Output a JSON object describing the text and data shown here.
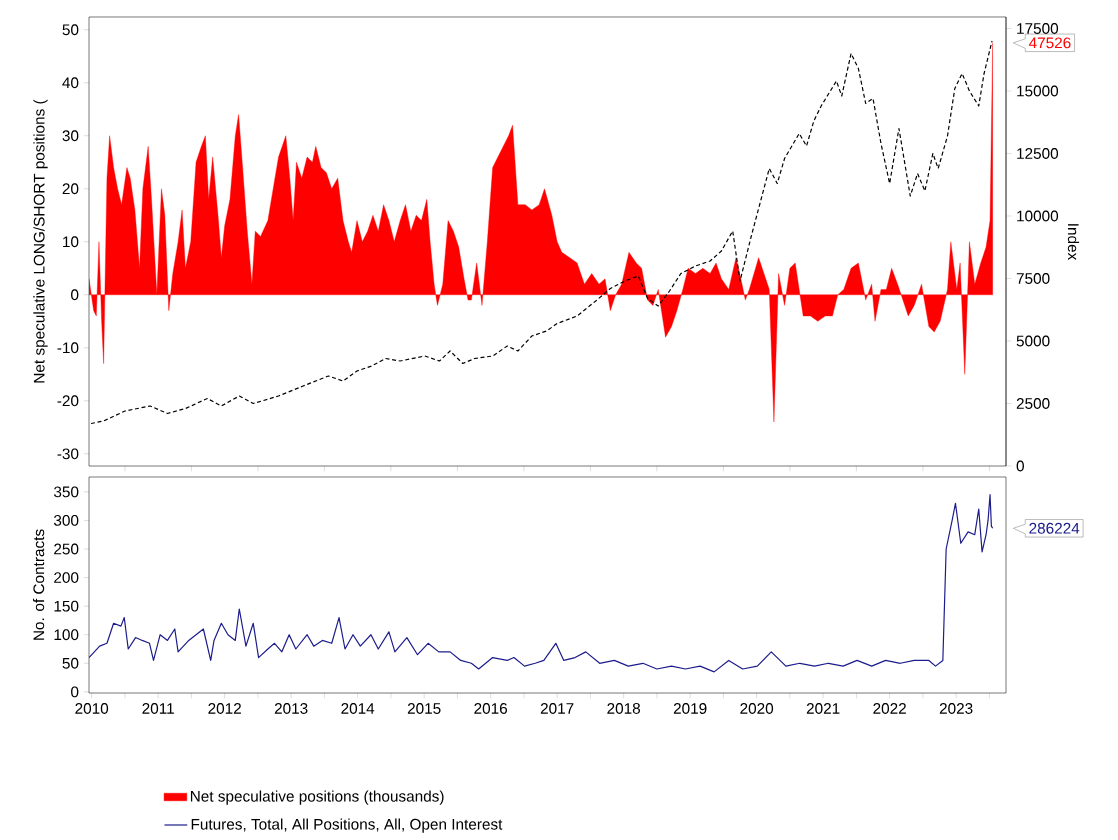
{
  "chart_data": [
    {
      "type": "bar",
      "ylabel": "Net speculative LONG/SHORT positions (",
      "y2label": "Index",
      "xlim": [
        2010.46,
        2024.25
      ],
      "xticks": [
        {
          "value": 2011,
          "label": null
        },
        {
          "value": 2012,
          "label": null
        },
        {
          "value": 2013,
          "label": null
        },
        {
          "value": 2014,
          "label": null
        },
        {
          "value": 2015,
          "label": null
        },
        {
          "value": 2016,
          "label": null
        },
        {
          "value": 2017,
          "label": null
        },
        {
          "value": 2018,
          "label": null
        },
        {
          "value": 2019,
          "label": null
        },
        {
          "value": 2020,
          "label": null
        },
        {
          "value": 2021,
          "label": null
        },
        {
          "value": 2022,
          "label": null
        },
        {
          "value": 2023,
          "label": null
        },
        {
          "value": 2024,
          "label": null
        }
      ],
      "ylim": [
        -32.3,
        52.4
      ],
      "yticks": [
        -30,
        -20,
        -10,
        0,
        10,
        20,
        30,
        40,
        50
      ],
      "y2lim": [
        0,
        17960
      ],
      "y2ticks": [
        0,
        2500,
        5000,
        7500,
        10000,
        12500,
        15000,
        17500
      ],
      "tick_labels": "y",
      "legend": "bottom",
      "annotations": [
        {
          "text": "47526",
          "x": 2024.05,
          "y": 47.526
        }
      ],
      "series": [
        {
          "name": "Net speculative positions (thousands)",
          "type": "area",
          "color": "#ff0000",
          "x": [
            2010.46,
            2010.53,
            2010.57,
            2010.61,
            2010.65,
            2010.68,
            2010.73,
            2010.77,
            2010.83,
            2010.89,
            2010.95,
            2011.03,
            2011.08,
            2011.15,
            2011.22,
            2011.27,
            2011.35,
            2011.4,
            2011.48,
            2011.55,
            2011.6,
            2011.66,
            2011.72,
            2011.8,
            2011.86,
            2011.91,
            2011.99,
            2012.07,
            2012.15,
            2012.21,
            2012.26,
            2012.32,
            2012.4,
            2012.45,
            2012.5,
            2012.58,
            2012.66,
            2012.71,
            2012.77,
            2012.84,
            2012.91,
            2012.96,
            2013.04,
            2013.15,
            2013.23,
            2013.31,
            2013.42,
            2013.48,
            2013.53,
            2013.58,
            2013.66,
            2013.74,
            2013.82,
            2013.87,
            2013.95,
            2014.03,
            2014.11,
            2014.2,
            2014.28,
            2014.36,
            2014.41,
            2014.49,
            2014.57,
            2014.65,
            2014.73,
            2014.81,
            2014.89,
            2014.97,
            2015.05,
            2015.14,
            2015.22,
            2015.3,
            2015.38,
            2015.46,
            2015.54,
            2015.59,
            2015.65,
            2015.7,
            2015.78,
            2015.86,
            2015.94,
            2016.02,
            2016.1,
            2016.16,
            2016.21,
            2016.29,
            2016.37,
            2016.45,
            2016.53,
            2016.61,
            2016.69,
            2016.77,
            2016.83,
            2016.91,
            2017.02,
            2017.12,
            2017.23,
            2017.31,
            2017.42,
            2017.5,
            2017.57,
            2017.69,
            2017.8,
            2017.91,
            2018.02,
            2018.13,
            2018.22,
            2018.3,
            2018.38,
            2018.47,
            2018.58,
            2018.69,
            2018.77,
            2018.86,
            2018.94,
            2019.02,
            2019.13,
            2019.22,
            2019.3,
            2019.39,
            2019.47,
            2019.58,
            2019.69,
            2019.8,
            2019.89,
            2019.97,
            2020.08,
            2020.19,
            2020.28,
            2020.33,
            2020.39,
            2020.53,
            2020.61,
            2020.69,
            2020.76,
            2020.83,
            2020.92,
            2021.0,
            2021.08,
            2021.2,
            2021.31,
            2021.42,
            2021.53,
            2021.64,
            2021.72,
            2021.81,
            2021.92,
            2022.03,
            2022.14,
            2022.23,
            2022.28,
            2022.37,
            2022.45,
            2022.53,
            2022.62,
            2022.7,
            2022.78,
            2022.87,
            2022.98,
            2023.09,
            2023.17,
            2023.26,
            2023.37,
            2023.42,
            2023.51,
            2023.56,
            2023.63,
            2023.7,
            2023.78,
            2023.87,
            2023.95,
            2024.01,
            2024.05
          ],
          "values": [
            3,
            -3,
            -4,
            10,
            -5,
            -13,
            22,
            30,
            24,
            20,
            17,
            24,
            22,
            16,
            5,
            20,
            28,
            18,
            0,
            20,
            15,
            -3,
            4,
            10,
            16,
            5,
            10,
            25,
            28,
            30,
            18,
            26,
            15,
            7,
            13,
            18,
            30,
            34,
            24,
            12,
            2,
            12,
            11,
            14,
            20,
            26,
            30,
            22,
            14,
            25,
            22,
            26,
            25,
            28,
            24,
            23,
            20,
            22,
            14,
            10,
            8,
            14,
            10,
            12,
            15,
            12,
            17,
            14,
            10,
            14,
            17,
            12,
            15,
            14,
            18,
            10,
            2,
            -2,
            2,
            14,
            12,
            9,
            3,
            -1,
            -1,
            6,
            -2,
            10,
            24,
            26,
            28,
            30,
            32,
            17,
            17,
            16,
            17,
            20,
            15,
            10,
            8,
            7,
            6,
            2,
            4,
            2,
            3,
            -3,
            0,
            2,
            8,
            6,
            5,
            -1,
            -2,
            1,
            -8,
            -6,
            -3,
            1,
            5,
            4,
            5,
            4,
            6,
            3,
            1,
            7,
            2,
            -1,
            1,
            7,
            4,
            1,
            -24,
            4,
            -2,
            5,
            6,
            -4,
            -4,
            -5,
            -4,
            -4,
            0,
            1,
            5,
            6,
            -1,
            2,
            -5,
            1,
            1,
            5,
            2,
            -1,
            -4,
            -2,
            2,
            -6,
            -7,
            -5,
            1,
            10,
            1,
            6,
            -15,
            10,
            2,
            6,
            9,
            14,
            47.526
          ]
        },
        {
          "type": "line",
          "axis": "y2",
          "color": "#000000",
          "line_style": "dashed",
          "x": [
            2010.49,
            2010.68,
            2011.0,
            2011.38,
            2011.64,
            2011.91,
            2012.24,
            2012.45,
            2012.72,
            2012.93,
            2013.31,
            2013.68,
            2014.06,
            2014.28,
            2014.49,
            2014.71,
            2014.92,
            2015.14,
            2015.51,
            2015.73,
            2015.89,
            2016.08,
            2016.26,
            2016.53,
            2016.75,
            2016.91,
            2017.12,
            2017.34,
            2017.5,
            2017.8,
            2018.08,
            2018.3,
            2018.52,
            2018.72,
            2018.86,
            2019.02,
            2019.19,
            2019.36,
            2019.58,
            2019.8,
            2019.97,
            2020.14,
            2020.25,
            2020.42,
            2020.58,
            2020.69,
            2020.81,
            2020.92,
            2021.14,
            2021.25,
            2021.36,
            2021.47,
            2021.7,
            2021.78,
            2021.92,
            2022.03,
            2022.14,
            2022.25,
            2022.37,
            2022.5,
            2022.64,
            2022.81,
            2022.92,
            2023.03,
            2023.15,
            2023.23,
            2023.37,
            2023.48,
            2023.59,
            2023.7,
            2023.84,
            2023.92,
            2024.04
          ],
          "values": [
            1700,
            1800,
            2200,
            2400,
            2100,
            2300,
            2700,
            2400,
            2800,
            2500,
            2800,
            3200,
            3600,
            3400,
            3800,
            4000,
            4300,
            4200,
            4400,
            4200,
            4600,
            4100,
            4300,
            4400,
            4800,
            4600,
            5200,
            5400,
            5700,
            6000,
            6600,
            7100,
            7400,
            7600,
            6700,
            6400,
            7000,
            7700,
            8000,
            8200,
            8600,
            9400,
            7400,
            9200,
            10800,
            11900,
            11300,
            12300,
            13300,
            12800,
            13800,
            14400,
            15400,
            14800,
            16500,
            15900,
            14500,
            14700,
            12900,
            11300,
            13500,
            10800,
            11700,
            11000,
            12500,
            11900,
            13200,
            15100,
            15700,
            15000,
            14400,
            15700,
            17000
          ]
        }
      ]
    },
    {
      "type": "line",
      "ylabel": "No. of Contracts",
      "xlim": [
        2010.46,
        2024.25
      ],
      "xticks": [
        {
          "value": 2010.5,
          "label": "2010"
        },
        {
          "value": 2011,
          "label": null
        },
        {
          "value": 2011.5,
          "label": "2011"
        },
        {
          "value": 2012,
          "label": null
        },
        {
          "value": 2012.5,
          "label": "2012"
        },
        {
          "value": 2013,
          "label": null
        },
        {
          "value": 2013.5,
          "label": "2013"
        },
        {
          "value": 2014,
          "label": null
        },
        {
          "value": 2014.5,
          "label": "2014"
        },
        {
          "value": 2015,
          "label": null
        },
        {
          "value": 2015.5,
          "label": "2015"
        },
        {
          "value": 2016,
          "label": null
        },
        {
          "value": 2016.5,
          "label": "2016"
        },
        {
          "value": 2017,
          "label": null
        },
        {
          "value": 2017.5,
          "label": "2017"
        },
        {
          "value": 2018,
          "label": null
        },
        {
          "value": 2018.5,
          "label": "2018"
        },
        {
          "value": 2019,
          "label": null
        },
        {
          "value": 2019.5,
          "label": "2019"
        },
        {
          "value": 2020,
          "label": null
        },
        {
          "value": 2020.5,
          "label": "2020"
        },
        {
          "value": 2021,
          "label": null
        },
        {
          "value": 2021.5,
          "label": "2021"
        },
        {
          "value": 2022,
          "label": null
        },
        {
          "value": 2022.5,
          "label": "2022"
        },
        {
          "value": 2023,
          "label": null
        },
        {
          "value": 2023.5,
          "label": "2023"
        },
        {
          "value": 2024,
          "label": null
        }
      ],
      "ylim": [
        -2,
        376
      ],
      "yticks": [
        0,
        50,
        100,
        150,
        200,
        250,
        300,
        350
      ],
      "legend": "bottom",
      "annotations": [
        {
          "text": "286224",
          "x": 2024.05,
          "y": 286.224
        }
      ],
      "series": [
        {
          "name": "Futures, Total, All Positions, All, Open Interest",
          "color": "#1c1c8c",
          "line_style": "solid",
          "x": [
            2010.46,
            2010.62,
            2010.73,
            2010.83,
            2010.94,
            2010.99,
            2011.05,
            2011.16,
            2011.26,
            2011.37,
            2011.43,
            2011.53,
            2011.64,
            2011.75,
            2011.8,
            2011.96,
            2012.07,
            2012.18,
            2012.29,
            2012.34,
            2012.45,
            2012.55,
            2012.66,
            2012.72,
            2012.82,
            2012.93,
            2013.01,
            2013.15,
            2013.25,
            2013.36,
            2013.47,
            2013.57,
            2013.74,
            2013.84,
            2013.97,
            2014.11,
            2014.22,
            2014.31,
            2014.43,
            2014.54,
            2014.7,
            2014.81,
            2014.97,
            2015.06,
            2015.24,
            2015.4,
            2015.56,
            2015.72,
            2015.89,
            2016.05,
            2016.21,
            2016.32,
            2016.53,
            2016.75,
            2016.85,
            2017.01,
            2017.17,
            2017.3,
            2017.48,
            2017.6,
            2017.77,
            2017.93,
            2018.14,
            2018.36,
            2018.57,
            2018.79,
            2019.0,
            2019.22,
            2019.43,
            2019.65,
            2019.86,
            2020.08,
            2020.29,
            2020.51,
            2020.72,
            2020.94,
            2021.15,
            2021.37,
            2021.58,
            2021.8,
            2022.01,
            2022.23,
            2022.44,
            2022.66,
            2022.87,
            2023.09,
            2023.19,
            2023.3,
            2023.35,
            2023.44,
            2023.49,
            2023.57,
            2023.68,
            2023.78,
            2023.84,
            2023.89,
            2023.95,
            2023.98,
            2024.01,
            2024.03,
            2024.05
          ],
          "values": [
            60,
            80,
            85,
            120,
            115,
            130,
            75,
            95,
            90,
            85,
            55,
            100,
            90,
            110,
            70,
            90,
            100,
            110,
            55,
            90,
            120,
            100,
            90,
            145,
            80,
            120,
            60,
            75,
            85,
            70,
            100,
            75,
            100,
            80,
            90,
            85,
            130,
            75,
            100,
            80,
            100,
            75,
            105,
            70,
            95,
            65,
            85,
            70,
            70,
            55,
            50,
            40,
            60,
            55,
            60,
            45,
            50,
            55,
            85,
            55,
            60,
            70,
            50,
            55,
            45,
            50,
            40,
            45,
            40,
            45,
            35,
            55,
            40,
            45,
            70,
            45,
            50,
            45,
            50,
            45,
            55,
            45,
            55,
            50,
            55,
            55,
            45,
            55,
            250,
            300,
            330,
            260,
            280,
            275,
            320,
            245,
            275,
            300,
            345,
            290,
            286.224
          ]
        }
      ]
    }
  ]
}
